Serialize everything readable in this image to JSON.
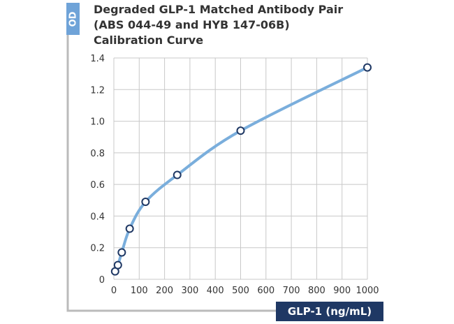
{
  "chart_data": {
    "type": "line",
    "title": [
      "Degraded GLP-1 Matched Antibody Pair",
      "(ABS 044-49 and HYB 147-06B)",
      "Calibration Curve"
    ],
    "ylabel": "OD",
    "xlabel": "GLP-1 (ng/mL)",
    "xlim": [
      0,
      1000
    ],
    "ylim": [
      0,
      1.4
    ],
    "xticks": [
      0,
      100,
      200,
      300,
      400,
      500,
      600,
      700,
      800,
      900,
      1000
    ],
    "yticks": [
      0,
      0.2,
      0.4,
      0.6,
      0.8,
      1.0,
      1.2,
      1.4
    ],
    "ytick_labels": [
      "0",
      "0.2",
      "0.4",
      "0.6",
      "0.8",
      "1.0",
      "1.2",
      "1.4"
    ],
    "grid": true,
    "series": [
      {
        "x": [
          5,
          16,
          31.25,
          62.5,
          125,
          250,
          500,
          1000
        ],
        "y": [
          0.05,
          0.09,
          0.17,
          0.32,
          0.49,
          0.66,
          0.94,
          1.34
        ]
      }
    ],
    "colors": {
      "line": "#7aaedc",
      "marker_edge": "#1f3864",
      "grid": "#c8c8c8",
      "axis": "#bbbbbb",
      "od_box": "#6fa3d8",
      "x_box": "#1f3864"
    }
  }
}
